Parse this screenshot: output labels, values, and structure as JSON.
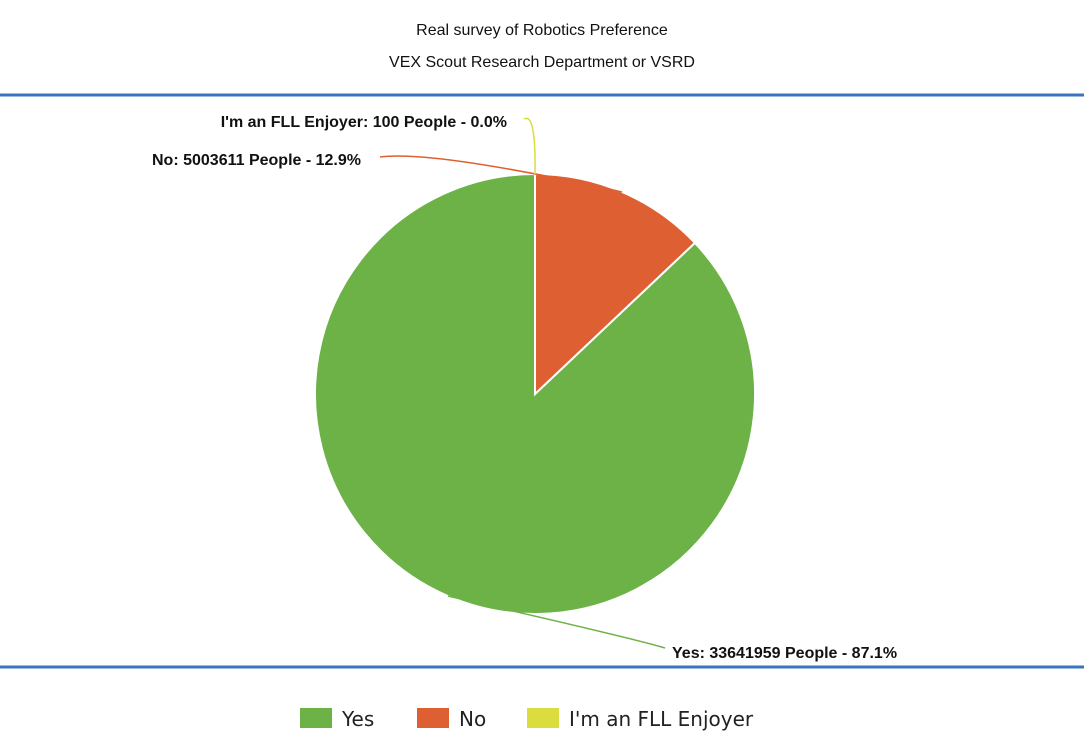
{
  "chart_data": {
    "type": "pie",
    "title": "Real survey of Robotics Preference",
    "subtitle": "VEX Scout Research Department or VSRD",
    "legend_position": "bottom",
    "slices": [
      {
        "name": "Yes",
        "value": 33641959,
        "percent": 87.1,
        "color": "#6cb247",
        "label": "Yes: 33641959 People - 87.1%"
      },
      {
        "name": "No",
        "value": 5003611,
        "percent": 12.9,
        "color": "#de5f32",
        "label": "No: 5003611 People - 12.9%"
      },
      {
        "name": "I'm an FLL Enjoyer",
        "value": 100,
        "percent": 0.0,
        "color": "#dbdc3d",
        "label": "I'm an FLL Enjoyer: 100 People - 0.0%"
      }
    ]
  },
  "frame": {
    "rule_color": "#3a73c0"
  }
}
